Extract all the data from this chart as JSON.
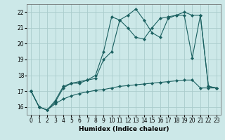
{
  "xlabel": "Humidex (Indice chaleur)",
  "xlim": [
    -0.5,
    23.5
  ],
  "ylim": [
    15.5,
    22.5
  ],
  "yticks": [
    16,
    17,
    18,
    19,
    20,
    21,
    22
  ],
  "xticks": [
    0,
    1,
    2,
    3,
    4,
    5,
    6,
    7,
    8,
    9,
    10,
    11,
    12,
    13,
    14,
    15,
    16,
    17,
    18,
    19,
    20,
    21,
    22,
    23
  ],
  "background_color": "#cce8e8",
  "grid_color": "#aacccc",
  "line_color": "#1a6060",
  "line1_x": [
    0,
    1,
    2,
    3,
    4,
    5,
    6,
    7,
    8,
    9,
    10,
    11,
    12,
    13,
    14,
    15,
    16,
    17,
    18,
    19,
    20,
    21,
    22,
    23
  ],
  "line1_y": [
    17.0,
    16.0,
    15.8,
    16.2,
    16.5,
    16.7,
    16.85,
    16.95,
    17.05,
    17.1,
    17.2,
    17.3,
    17.35,
    17.4,
    17.45,
    17.5,
    17.55,
    17.6,
    17.65,
    17.7,
    17.7,
    17.2,
    17.2,
    17.2
  ],
  "line2_x": [
    0,
    1,
    2,
    3,
    4,
    5,
    6,
    7,
    8,
    9,
    10,
    11,
    12,
    13,
    14,
    15,
    16,
    17,
    18,
    19,
    20,
    21,
    22,
    23
  ],
  "line2_y": [
    17.0,
    16.0,
    15.8,
    16.4,
    17.3,
    17.5,
    17.6,
    17.7,
    18.0,
    19.5,
    21.7,
    21.5,
    21.8,
    22.2,
    21.5,
    20.7,
    20.4,
    21.6,
    21.8,
    21.8,
    19.1,
    21.8,
    17.3,
    17.2
  ],
  "line3_x": [
    0,
    1,
    2,
    3,
    4,
    5,
    6,
    7,
    8,
    9,
    10,
    11,
    12,
    13,
    14,
    15,
    16,
    17,
    18,
    19,
    20,
    21,
    22,
    23
  ],
  "line3_y": [
    17.0,
    16.0,
    15.8,
    16.3,
    17.2,
    17.5,
    17.5,
    17.7,
    17.8,
    19.0,
    19.5,
    21.5,
    21.0,
    20.4,
    20.3,
    21.0,
    21.6,
    21.7,
    21.8,
    22.0,
    21.8,
    21.8,
    17.3,
    17.2
  ]
}
